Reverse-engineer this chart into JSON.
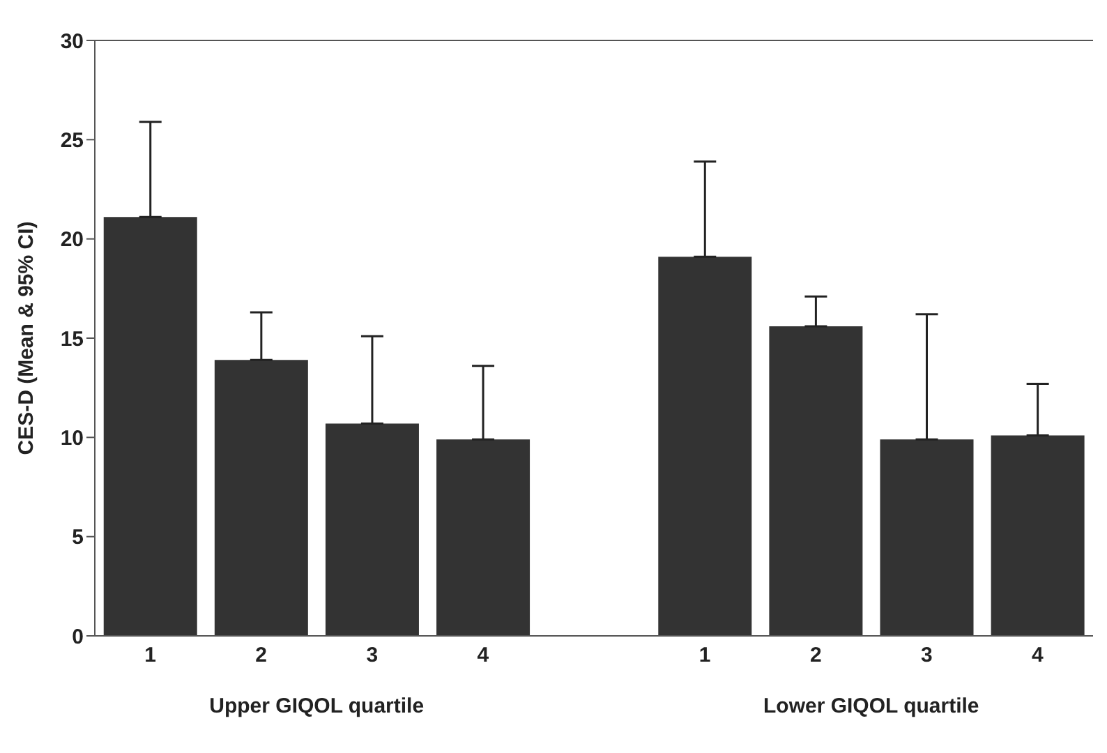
{
  "chart_data": {
    "type": "bar",
    "ylabel": "CES-D (Mean & 95% CI)",
    "categories": [
      "1",
      "2",
      "3",
      "4",
      null,
      "1",
      "2",
      "3",
      "4"
    ],
    "values": [
      21.1,
      13.9,
      10.7,
      9.9,
      null,
      19.1,
      15.6,
      9.9,
      10.1
    ],
    "errors": [
      [
        21.1,
        25.9
      ],
      [
        13.9,
        16.3
      ],
      [
        10.7,
        15.1
      ],
      [
        9.9,
        13.6
      ],
      null,
      [
        19.1,
        23.9
      ],
      [
        15.6,
        17.1
      ],
      [
        9.9,
        16.2
      ],
      [
        10.1,
        12.7
      ]
    ],
    "color": "#333333",
    "ylim": [
      0,
      30
    ],
    "yticks": [
      0,
      5,
      10,
      15,
      20,
      25,
      30
    ],
    "annotations": [
      "Upper GIQOL quartile",
      "Lower GIQOL quartile"
    ]
  }
}
